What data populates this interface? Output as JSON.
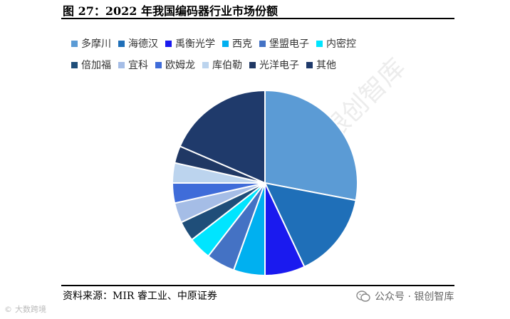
{
  "title": "图 27：2022 年我国编码器行业市场份额",
  "source": "资料来源：MIR 睿工业、中原证券",
  "wechat_label": "公众号 · 银创智库",
  "watermark_left": "大数跨境",
  "watermark_diag": "银创智库",
  "chart_data": {
    "type": "pie",
    "title": "",
    "legend_position": "top",
    "slices": [
      {
        "name": "多摩川",
        "value": 28,
        "color": "#5b9bd5"
      },
      {
        "name": "海德汉",
        "value": 15,
        "color": "#1f6fb8"
      },
      {
        "name": "禹衡光学",
        "value": 7,
        "color": "#1a1aef"
      },
      {
        "name": "西克",
        "value": 5.5,
        "color": "#00b0f0"
      },
      {
        "name": "堡盟电子",
        "value": 5,
        "color": "#4472c4"
      },
      {
        "name": "内密控",
        "value": 4,
        "color": "#00e5ff"
      },
      {
        "name": "倍加福",
        "value": 3.5,
        "color": "#1f4e79"
      },
      {
        "name": "宜科",
        "value": 3.5,
        "color": "#a5bde6"
      },
      {
        "name": "欧姆龙",
        "value": 3.5,
        "color": "#3f6cd9"
      },
      {
        "name": "库伯勒",
        "value": 3.5,
        "color": "#bcd4ee"
      },
      {
        "name": "光洋电子",
        "value": 3,
        "color": "#203864"
      },
      {
        "name": "其他",
        "value": 18.5,
        "color": "#1f3a6b"
      }
    ]
  }
}
